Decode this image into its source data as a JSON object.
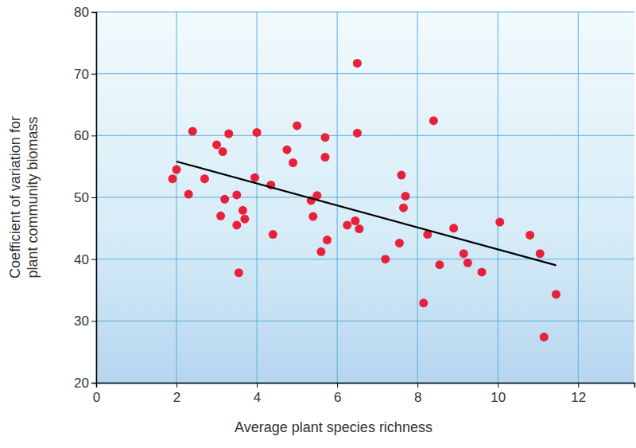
{
  "chart_data": {
    "type": "scatter",
    "xlabel": "Average plant species richness",
    "ylabel": [
      "Coefficient of variation for",
      "plant community biomass"
    ],
    "xlim": [
      0,
      13.4
    ],
    "xticks": [
      0,
      2,
      4,
      6,
      8,
      10,
      12
    ],
    "ylim": [
      20,
      80
    ],
    "yticks": [
      20,
      30,
      40,
      50,
      60,
      70,
      80
    ],
    "grid": true,
    "series": [
      {
        "type": "scatter",
        "color": "#e8203a",
        "marker": "circle",
        "x": [
          1.9,
          2.0,
          2.3,
          2.4,
          2.7,
          3.0,
          3.1,
          3.15,
          3.2,
          3.3,
          3.5,
          3.5,
          3.55,
          3.65,
          3.7,
          3.95,
          4.0,
          4.35,
          4.4,
          4.75,
          4.9,
          5.0,
          5.35,
          5.4,
          5.5,
          5.6,
          5.7,
          5.7,
          5.75,
          6.25,
          6.45,
          6.5,
          6.5,
          6.55,
          7.2,
          7.55,
          7.6,
          7.65,
          7.7,
          8.15,
          8.25,
          8.4,
          8.55,
          8.9,
          9.15,
          9.25,
          9.6,
          10.05,
          10.8,
          11.05,
          11.15,
          11.45
        ],
        "values": [
          53,
          54.5,
          50.5,
          60.7,
          53,
          58.5,
          47,
          57.4,
          49.7,
          60.3,
          50.4,
          45.5,
          37.8,
          47.9,
          46.5,
          53.2,
          60.5,
          52,
          44,
          57.7,
          55.6,
          61.6,
          49.5,
          46.9,
          50.3,
          41.2,
          59.7,
          56.5,
          43.1,
          45.5,
          46.2,
          60.4,
          71.7,
          44.9,
          40,
          42.6,
          53.6,
          48.3,
          50.2,
          32.9,
          44,
          62.4,
          39.1,
          45,
          40.9,
          39.4,
          37.9,
          46,
          43.9,
          40.9,
          27.4,
          34.3
        ]
      },
      {
        "type": "line",
        "color": "#000000",
        "line_style": "solid",
        "x": [
          2.0,
          11.45
        ],
        "values": [
          55.8,
          39.0
        ]
      }
    ]
  }
}
